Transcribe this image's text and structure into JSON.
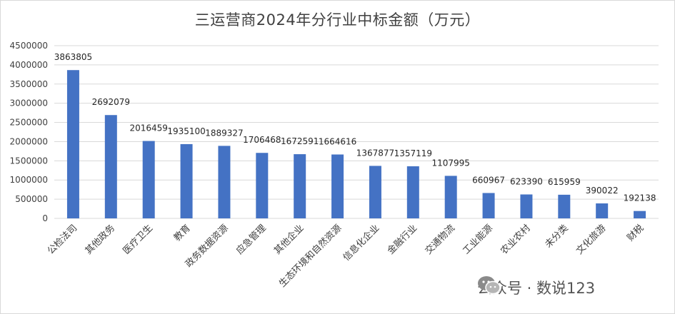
{
  "title": "三运营商2024年分行业中标金额（万元）",
  "watermark": {
    "text": "公众号 · 数说123",
    "icon": "wechat-icon"
  },
  "colors": {
    "bar": "#4472c4",
    "grid": "#d9d9d9"
  },
  "chart_data": {
    "type": "bar",
    "title": "三运营商2024年分行业中标金额（万元）",
    "xlabel": "",
    "ylabel": "",
    "ylim": [
      0,
      4500000
    ],
    "yticks": [
      0,
      500000,
      1000000,
      1500000,
      2000000,
      2500000,
      3000000,
      3500000,
      4000000,
      4500000
    ],
    "grid": true,
    "legend": "none",
    "categories": [
      "公检法司",
      "其他政务",
      "医疗卫生",
      "教育",
      "政务数据资源",
      "应急管理",
      "其他企业",
      "生态环境和自然资源",
      "信息化企业",
      "金融行业",
      "交通物流",
      "工业能源",
      "农业农村",
      "未分类",
      "文化旅游",
      "财税"
    ],
    "values": [
      3863805,
      2692079,
      2016459,
      1935100,
      1889327,
      1706468,
      1672591,
      1664616,
      1367877,
      1357119,
      1107995,
      660967,
      623390,
      615959,
      390022,
      192138
    ]
  }
}
